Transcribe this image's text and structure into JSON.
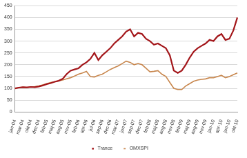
{
  "chart_data": {
    "type": "line",
    "categories": [
      "jan-04",
      null,
      "mar-04",
      null,
      "okt-04",
      null,
      "dec-04",
      null,
      "feb-05",
      null,
      "maj-05",
      null,
      "aug-05",
      null,
      "nov-05",
      null,
      "feb-06",
      null,
      "apr-06",
      null,
      "jul-06",
      null,
      "sep-06",
      null,
      "dec-06",
      null,
      "mar-07",
      null,
      "jun-07",
      null,
      "sep-07",
      null,
      "dec-07",
      null,
      "feb-08",
      null,
      "maj-08",
      null,
      "aug-08",
      null,
      "nov-08",
      null,
      "feb-09",
      null,
      "maj-09",
      null,
      "aug-09",
      null,
      "nov-09",
      null,
      "jan-10",
      null,
      "apr-10",
      null,
      "jun-10",
      null,
      "okt-10"
    ],
    "series": [
      {
        "name": "Trance",
        "color": "#a3161a",
        "values": [
          100,
          103,
          105,
          104,
          106,
          105,
          108,
          112,
          118,
          122,
          128,
          132,
          140,
          160,
          175,
          180,
          185,
          200,
          210,
          225,
          250,
          220,
          240,
          255,
          270,
          290,
          305,
          320,
          340,
          350,
          320,
          335,
          330,
          310,
          300,
          285,
          290,
          280,
          270,
          240,
          175,
          165,
          175,
          200,
          230,
          255,
          270,
          280,
          290,
          305,
          300,
          320,
          330,
          305,
          310,
          345,
          400
        ]
      },
      {
        "name": "OMXSPI",
        "color": "#c8874e",
        "values": [
          100,
          103,
          105,
          103,
          106,
          107,
          110,
          115,
          120,
          125,
          128,
          132,
          135,
          140,
          145,
          152,
          160,
          165,
          172,
          150,
          148,
          155,
          160,
          170,
          180,
          188,
          195,
          205,
          215,
          210,
          200,
          205,
          200,
          185,
          170,
          172,
          175,
          160,
          150,
          125,
          100,
          95,
          95,
          110,
          120,
          130,
          135,
          138,
          140,
          145,
          145,
          150,
          155,
          145,
          150,
          158,
          165
        ]
      }
    ],
    "ylim": [
      0,
      450
    ],
    "yticks": [
      0,
      50,
      100,
      150,
      200,
      250,
      300,
      350,
      400,
      450
    ],
    "grid": true,
    "legend": "bottom"
  }
}
